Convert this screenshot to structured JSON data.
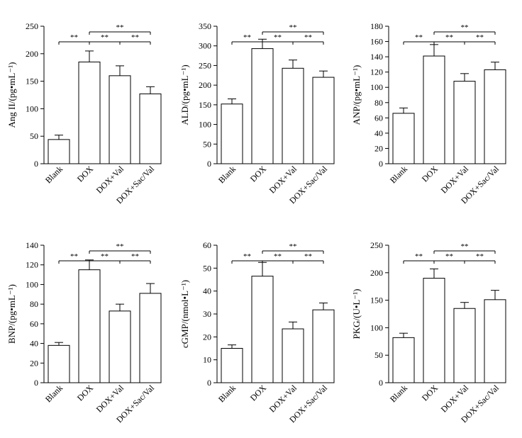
{
  "chart_data": [
    {
      "type": "bar",
      "ylabel": "Ang II/(pg•mL⁻¹)",
      "categories": [
        "Blank",
        "DOX",
        "DOX+Val",
        "DOX+Sac/Val"
      ],
      "values": [
        44,
        185,
        160,
        127
      ],
      "errors": [
        8,
        20,
        18,
        13
      ],
      "ylim": [
        0,
        250
      ],
      "yticks": [
        0,
        50,
        100,
        150,
        200,
        250
      ],
      "significance": [
        {
          "from": 0,
          "to": 1,
          "label": "**",
          "level": 1
        },
        {
          "from": 1,
          "to": 2,
          "label": "**",
          "level": 1
        },
        {
          "from": 2,
          "to": 3,
          "label": "**",
          "level": 1
        },
        {
          "from": 1,
          "to": 3,
          "label": "**",
          "level": 2
        }
      ]
    },
    {
      "type": "bar",
      "ylabel": "ALD/(pg•mL⁻¹)",
      "categories": [
        "Blank",
        "DOX",
        "DOX+Val",
        "DOX+Sac/Val"
      ],
      "values": [
        152,
        293,
        243,
        220
      ],
      "errors": [
        13,
        24,
        21,
        16
      ],
      "ylim": [
        0,
        350
      ],
      "yticks": [
        0,
        50,
        100,
        150,
        200,
        250,
        300,
        350
      ],
      "significance": [
        {
          "from": 0,
          "to": 1,
          "label": "**",
          "level": 1
        },
        {
          "from": 1,
          "to": 2,
          "label": "**",
          "level": 1
        },
        {
          "from": 2,
          "to": 3,
          "label": "**",
          "level": 1
        },
        {
          "from": 1,
          "to": 3,
          "label": "**",
          "level": 2
        }
      ]
    },
    {
      "type": "bar",
      "ylabel": "ANP/(pg•mL⁻¹)",
      "categories": [
        "Blank",
        "DOX",
        "DOX+Val",
        "DOX+Sac/Val"
      ],
      "values": [
        66,
        141,
        108,
        123
      ],
      "errors": [
        7,
        15,
        10,
        10
      ],
      "ylim": [
        0,
        180
      ],
      "yticks": [
        0,
        20,
        40,
        60,
        80,
        100,
        120,
        140,
        160,
        180
      ],
      "significance": [
        {
          "from": 0,
          "to": 1,
          "label": "**",
          "level": 1
        },
        {
          "from": 1,
          "to": 2,
          "label": "**",
          "level": 1
        },
        {
          "from": 2,
          "to": 3,
          "label": "**",
          "level": 1
        },
        {
          "from": 1,
          "to": 3,
          "label": "**",
          "level": 2
        }
      ]
    },
    {
      "type": "bar",
      "ylabel": "BNP/(pg•mL⁻¹)",
      "categories": [
        "Blank",
        "DOX",
        "DOX+Val",
        "DOX+Sac/Val"
      ],
      "values": [
        38,
        115,
        73,
        91
      ],
      "errors": [
        3,
        10,
        7,
        10
      ],
      "ylim": [
        0,
        140
      ],
      "yticks": [
        0,
        20,
        40,
        60,
        80,
        100,
        120,
        140
      ],
      "significance": [
        {
          "from": 0,
          "to": 1,
          "label": "**",
          "level": 1
        },
        {
          "from": 1,
          "to": 2,
          "label": "**",
          "level": 1
        },
        {
          "from": 2,
          "to": 3,
          "label": "**",
          "level": 1
        },
        {
          "from": 1,
          "to": 3,
          "label": "**",
          "level": 2
        }
      ]
    },
    {
      "type": "bar",
      "ylabel": "cGMP/(nmol•L⁻¹)",
      "categories": [
        "Blank",
        "DOX",
        "DOX+Val",
        "DOX+Sac/Val"
      ],
      "values": [
        15,
        46.5,
        23.5,
        31.8
      ],
      "errors": [
        1.5,
        6,
        3,
        3
      ],
      "ylim": [
        0,
        60
      ],
      "yticks": [
        0,
        10,
        20,
        30,
        40,
        50,
        60
      ],
      "significance": [
        {
          "from": 0,
          "to": 1,
          "label": "**",
          "level": 1
        },
        {
          "from": 1,
          "to": 2,
          "label": "**",
          "level": 1
        },
        {
          "from": 2,
          "to": 3,
          "label": "**",
          "level": 1
        },
        {
          "from": 1,
          "to": 3,
          "label": "**",
          "level": 2
        }
      ]
    },
    {
      "type": "bar",
      "ylabel": "PKG/(U•L⁻¹)",
      "categories": [
        "Blank",
        "DOX",
        "DOX+Val",
        "DOX+Sac/Val"
      ],
      "values": [
        82,
        190,
        135,
        151
      ],
      "errors": [
        8,
        17,
        11,
        17
      ],
      "ylim": [
        0,
        250
      ],
      "yticks": [
        0,
        50,
        100,
        150,
        200,
        250
      ],
      "significance": [
        {
          "from": 0,
          "to": 1,
          "label": "**",
          "level": 1
        },
        {
          "from": 1,
          "to": 2,
          "label": "**",
          "level": 1
        },
        {
          "from": 2,
          "to": 3,
          "label": "**",
          "level": 1
        },
        {
          "from": 1,
          "to": 3,
          "label": "**",
          "level": 2
        }
      ]
    }
  ]
}
